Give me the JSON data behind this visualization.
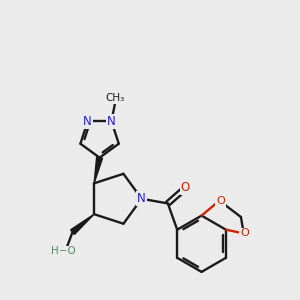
{
  "background_color": "#ebebeb",
  "bond_color": "#1a1a1a",
  "nitrogen_color": "#2222cc",
  "oxygen_color": "#cc2200",
  "hydrogen_color": "#4a8a6a",
  "figsize": [
    3.0,
    3.0
  ],
  "dpi": 100,
  "xlim": [
    -1.6,
    1.6
  ],
  "ylim": [
    -1.65,
    1.55
  ]
}
